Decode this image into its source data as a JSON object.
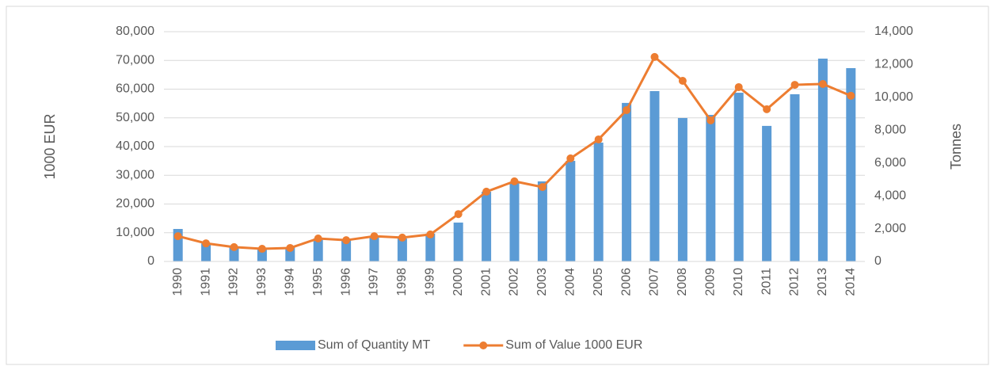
{
  "chart_data": {
    "type": "bar-line",
    "categories": [
      "1990",
      "1991",
      "1992",
      "1993",
      "1994",
      "1995",
      "1996",
      "1997",
      "1998",
      "1999",
      "2000",
      "2001",
      "2002",
      "2003",
      "2004",
      "2005",
      "2006",
      "2007",
      "2008",
      "2009",
      "2010",
      "2011",
      "2012",
      "2013",
      "2014"
    ],
    "series": [
      {
        "name": "Sum of Quantity MT",
        "type": "bar",
        "color": "#5b9bd5",
        "axis": "y2",
        "values": [
          1980,
          1100,
          850,
          750,
          850,
          1400,
          1300,
          1500,
          1400,
          1700,
          2370,
          4250,
          4830,
          4880,
          6130,
          7240,
          9660,
          10380,
          8740,
          8930,
          10280,
          8260,
          10190,
          12360,
          11780
        ]
      },
      {
        "name": "Sum of Value 1000 EUR",
        "type": "line",
        "color": "#ed7d31",
        "values": [
          8800,
          6300,
          5000,
          4400,
          4700,
          8000,
          7400,
          8800,
          8300,
          9400,
          16500,
          24300,
          27900,
          25900,
          35900,
          42500,
          52700,
          71200,
          62900,
          49100,
          60700,
          53000,
          61500,
          61800,
          57700
        ]
      }
    ],
    "ylabel": "1000 EUR",
    "y2label": "Tonnes",
    "ylim": [
      0,
      80000
    ],
    "yticks": [
      0,
      {
        "value": 10000,
        "label": "10,000"
      },
      {
        "value": 20000,
        "label": "20,000"
      },
      {
        "value": 30000,
        "label": "30,000"
      },
      {
        "value": 40000,
        "label": "40,000"
      },
      {
        "value": 50000,
        "label": "50,000"
      },
      {
        "value": 60000,
        "label": "60,000"
      },
      {
        "value": 70000,
        "label": "70,000"
      },
      {
        "value": 80000,
        "label": "80,000"
      }
    ],
    "y2lim": [
      0,
      14000
    ],
    "y2ticks": [
      0,
      {
        "value": 2000,
        "label": "2,000"
      },
      {
        "value": 4000,
        "label": "4,000"
      },
      {
        "value": 6000,
        "label": "6,000"
      },
      {
        "value": 8000,
        "label": "8,000"
      },
      {
        "value": 10000,
        "label": "10,000"
      },
      {
        "value": 12000,
        "label": "12,000"
      },
      {
        "value": 14000,
        "label": "14,000"
      }
    ],
    "grid": true,
    "legend": "bottom"
  }
}
